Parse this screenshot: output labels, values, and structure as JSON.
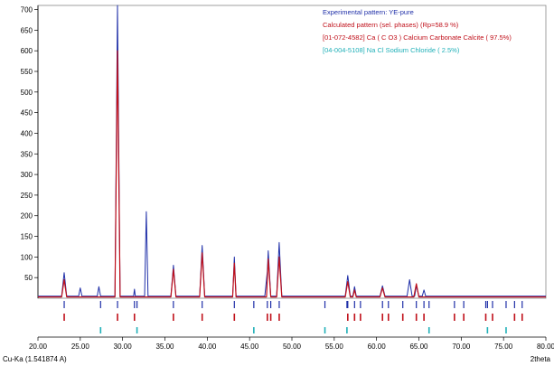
{
  "chart_data": {
    "type": "line",
    "title": "",
    "xlabel": "2theta",
    "xlabel_left": "Cu-Ka (1.541874 A)",
    "ylabel": "",
    "xlim": [
      20.0,
      80.0
    ],
    "ylim": [
      0,
      710
    ],
    "x_ticks": [
      "20.00",
      "25.00",
      "30.00",
      "35.00",
      "40.00",
      "45.00",
      "50.00",
      "55.00",
      "60.00",
      "65.00",
      "70.00",
      "75.00",
      "80.00"
    ],
    "y_ticks": [
      "50",
      "100",
      "150",
      "200",
      "250",
      "300",
      "350",
      "400",
      "450",
      "500",
      "550",
      "600",
      "650",
      "700"
    ],
    "grid": false,
    "legend_position": "top-right",
    "colors": {
      "experimental": "#1f2fa8",
      "calculated": "#c0101a",
      "calcite": "#c0101a",
      "nacl": "#20b0b8"
    },
    "legend": [
      {
        "label": "Experimental pattern: YE-pure",
        "color": "#1f2fa8"
      },
      {
        "label": "Calculated pattern (sel. phases) (Rp=58.9 %)",
        "color": "#c0101a"
      },
      {
        "label": "[01-072-4582] Ca ( C O3 ) Calcium Carbonate Calcite ( 97.5%)",
        "color": "#c0101a"
      },
      {
        "label": "[04-004-5108] Na Cl Sodium Chloride ( 2.5%)",
        "color": "#20b0b8"
      }
    ],
    "series": [
      {
        "name": "Experimental pattern: YE-pure",
        "x": [
          20.0,
          22.8,
          23.1,
          23.4,
          24.8,
          25.0,
          25.2,
          27.0,
          27.2,
          27.4,
          29.1,
          29.4,
          29.7,
          31.3,
          31.4,
          31.5,
          32.6,
          32.8,
          33.0,
          35.7,
          36.0,
          36.3,
          39.1,
          39.4,
          39.7,
          43.0,
          43.2,
          43.4,
          46.8,
          47.1,
          47.2,
          47.5,
          48.2,
          48.5,
          48.8,
          56.3,
          56.6,
          56.9,
          57.2,
          57.4,
          57.6,
          60.4,
          60.7,
          61.0,
          63.6,
          63.9,
          64.2,
          64.5,
          64.7,
          65.0,
          65.4,
          65.6,
          65.8,
          80.0
        ],
        "y": [
          5,
          5,
          62,
          5,
          5,
          25,
          5,
          5,
          28,
          5,
          5,
          710,
          5,
          5,
          22,
          5,
          5,
          210,
          5,
          5,
          80,
          5,
          5,
          128,
          5,
          5,
          100,
          5,
          5,
          65,
          115,
          5,
          5,
          135,
          5,
          5,
          55,
          5,
          5,
          28,
          5,
          5,
          30,
          5,
          5,
          45,
          5,
          5,
          30,
          5,
          5,
          20,
          5,
          5
        ]
      },
      {
        "name": "Calculated pattern (sel. phases) (Rp=58.9 %)",
        "x": [
          20.0,
          22.8,
          23.1,
          23.4,
          29.1,
          29.4,
          29.7,
          35.7,
          36.0,
          36.3,
          39.1,
          39.4,
          39.7,
          43.0,
          43.2,
          43.4,
          47.0,
          47.2,
          47.5,
          48.2,
          48.5,
          48.8,
          56.3,
          56.6,
          56.9,
          57.2,
          57.4,
          57.6,
          60.4,
          60.7,
          61.0,
          64.4,
          64.7,
          65.0,
          80.0
        ],
        "y": [
          3,
          3,
          45,
          3,
          3,
          600,
          3,
          3,
          70,
          3,
          3,
          110,
          3,
          3,
          85,
          3,
          3,
          95,
          3,
          3,
          100,
          3,
          3,
          40,
          3,
          3,
          20,
          3,
          3,
          25,
          3,
          3,
          35,
          3,
          3
        ]
      }
    ],
    "phases": [
      {
        "name": "[01-072-4582] Ca ( C O3 ) Calcium Carbonate Calcite ( 97.5%)",
        "positions": [
          23.1,
          29.4,
          31.4,
          36.0,
          39.4,
          43.2,
          47.1,
          47.5,
          48.5,
          56.6,
          57.4,
          58.1,
          60.7,
          61.4,
          63.1,
          64.7,
          65.6,
          69.2,
          70.3,
          72.9,
          73.7,
          76.3,
          77.2
        ]
      },
      {
        "name": "[04-004-5108] Na Cl Sodium Chloride ( 2.5%)",
        "positions": [
          27.4,
          31.7,
          45.5,
          53.9,
          56.5,
          66.2,
          73.1,
          75.3
        ]
      }
    ]
  }
}
